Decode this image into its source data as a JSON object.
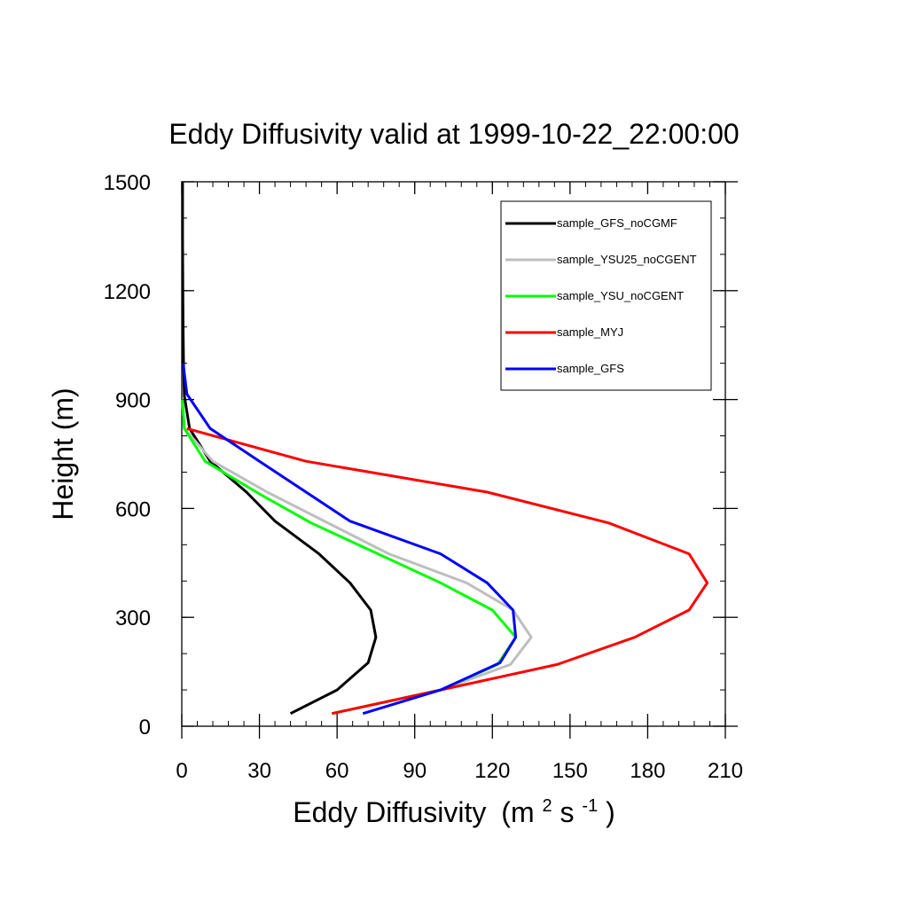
{
  "chart_data": {
    "type": "line",
    "title": "Eddy Diffusivity valid at 1999-10-22_22:00:00",
    "xlabel": "Eddy Diffusivity",
    "xlabel_unit_parts": [
      "(m",
      "2",
      " s",
      "-1",
      ")"
    ],
    "ylabel": "Height (m)",
    "xlim": [
      0,
      210
    ],
    "ylim": [
      0,
      1500
    ],
    "xticks": [
      0,
      30,
      60,
      90,
      120,
      150,
      180,
      210
    ],
    "yticks": [
      0,
      300,
      600,
      900,
      1200,
      1500
    ],
    "xtick_labels": [
      "0",
      "30",
      "60",
      "90",
      "120",
      "150",
      "180",
      "210"
    ],
    "ytick_labels": [
      "0",
      "300",
      "600",
      "900",
      "1200",
      "1500"
    ],
    "legend_position": "top-right",
    "grid": false,
    "series": [
      {
        "name": "sample_GFS_noCGMF",
        "color": "#000000",
        "x": [
          42,
          60,
          72,
          75,
          73,
          65,
          53,
          36,
          25,
          11,
          3,
          1,
          0.7,
          0.5,
          0.4,
          0.3,
          0.3
        ],
        "y": [
          35,
          100,
          175,
          245,
          320,
          395,
          475,
          565,
          645,
          730,
          820,
          910,
          1000,
          1100,
          1200,
          1350,
          1500
        ]
      },
      {
        "name": "sample_YSU25_noCGENT",
        "color": "#bebebe",
        "x": [
          58,
          100,
          127,
          135,
          128,
          110,
          80,
          33,
          12,
          1,
          0.2
        ],
        "y": [
          35,
          100,
          170,
          245,
          320,
          395,
          475,
          645,
          730,
          820,
          900
        ]
      },
      {
        "name": "sample_YSU_noCGENT",
        "color": "#00ff00",
        "x": [
          58,
          100,
          122,
          129,
          120,
          100,
          50,
          30,
          9,
          1,
          0.2
        ],
        "y": [
          35,
          100,
          170,
          245,
          320,
          395,
          560,
          640,
          730,
          820,
          900
        ]
      },
      {
        "name": "sample_MYJ",
        "color": "#ff0000",
        "x": [
          58,
          100,
          145,
          175,
          196,
          203,
          196,
          165,
          118,
          48,
          2
        ],
        "y": [
          35,
          100,
          170,
          245,
          320,
          395,
          475,
          560,
          645,
          730,
          820
        ]
      },
      {
        "name": "sample_GFS",
        "color": "#0000ff",
        "x": [
          70,
          100,
          123,
          129,
          128,
          118,
          100,
          65,
          30,
          11,
          2,
          0.5
        ],
        "y": [
          35,
          100,
          175,
          245,
          320,
          395,
          475,
          565,
          730,
          820,
          915,
          1000
        ]
      }
    ]
  }
}
